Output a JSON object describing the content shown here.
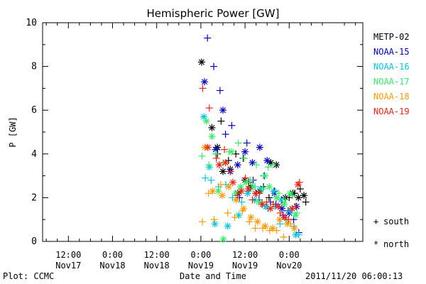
{
  "chart_data": {
    "type": "scatter",
    "title": "Hemispheric Power [GW]",
    "ylabel": "P [GW]",
    "xlabel": "Date and Time",
    "ylim": [
      0,
      10
    ],
    "yticks": [
      0,
      2,
      4,
      6,
      8,
      10
    ],
    "x_unit": "hours since 2011-11-16 12:00",
    "xlim": [
      17,
      104
    ],
    "xticks": [
      {
        "x": 24,
        "time": "12:00",
        "date": "Nov17"
      },
      {
        "x": 36,
        "time": "0:00",
        "date": "Nov18"
      },
      {
        "x": 48,
        "time": "12:00",
        "date": "Nov18"
      },
      {
        "x": 60,
        "time": "0:00",
        "date": "Nov19"
      },
      {
        "x": 72,
        "time": "12:00",
        "date": "Nov19"
      },
      {
        "x": 84,
        "time": "0:00",
        "date": "Nov20"
      }
    ],
    "series": [
      {
        "name": "METP-02",
        "color": "#000000",
        "south": [
          [
            64.5,
            4.0
          ],
          [
            65.5,
            5.5
          ],
          [
            67.5,
            3.7
          ],
          [
            69.5,
            4.0
          ],
          [
            71.5,
            3.8
          ],
          [
            73,
            2.7
          ],
          [
            75,
            2.2
          ],
          [
            77,
            2.5
          ],
          [
            78.5,
            2.0
          ],
          [
            80,
            2.3
          ],
          [
            82,
            1.9
          ],
          [
            84,
            2.0
          ],
          [
            85.5,
            2.2
          ],
          [
            87,
            2.4
          ],
          [
            88.5,
            1.8
          ]
        ],
        "north": [
          [
            60.2,
            8.2
          ],
          [
            63,
            5.2
          ],
          [
            64.5,
            4.3
          ],
          [
            66,
            3.2
          ],
          [
            68,
            3.3
          ],
          [
            70,
            2.2
          ],
          [
            72,
            2.8
          ],
          [
            73.5,
            2.5
          ],
          [
            76,
            2.3
          ],
          [
            79,
            3.6
          ],
          [
            80.5,
            3.5
          ],
          [
            83,
            2.0
          ],
          [
            85,
            2.2
          ],
          [
            86.5,
            2.0
          ],
          [
            88,
            2.1
          ]
        ]
      },
      {
        "name": "NOAA-15",
        "color": "#0000cc",
        "south": [
          [
            61.8,
            9.3
          ],
          [
            63.5,
            8.0
          ],
          [
            65.2,
            6.9
          ],
          [
            66.7,
            4.9
          ],
          [
            68.4,
            5.3
          ],
          [
            70.5,
            2.0
          ],
          [
            72.5,
            4.5
          ],
          [
            74.2,
            2.8
          ],
          [
            75.8,
            1.9
          ],
          [
            77.2,
            3.0
          ],
          [
            78.9,
            1.8
          ],
          [
            80.4,
            1.7
          ],
          [
            82.3,
            1.2
          ],
          [
            83.7,
            1.4
          ],
          [
            85.2,
            1.0
          ],
          [
            86.6,
            0.4
          ]
        ],
        "north": [
          [
            61,
            7.3
          ],
          [
            64,
            4.2
          ],
          [
            66,
            6.0
          ],
          [
            68,
            3.2
          ],
          [
            70,
            3.5
          ],
          [
            72,
            4.1
          ],
          [
            74,
            3.6
          ],
          [
            76,
            4.3
          ],
          [
            78,
            3.7
          ],
          [
            80,
            2.2
          ],
          [
            82,
            1.5
          ],
          [
            84,
            1.3
          ],
          [
            86,
            1.6
          ]
        ]
      },
      {
        "name": "NOAA-16",
        "color": "#00c8e0",
        "south": [
          [
            61.2,
            2.9
          ],
          [
            62.8,
            2.8
          ],
          [
            64.8,
            2.5
          ],
          [
            66.8,
            2.6
          ],
          [
            68.6,
            2.0
          ],
          [
            71.1,
            1.8
          ],
          [
            73,
            2.3
          ],
          [
            74.7,
            2.5
          ],
          [
            76.5,
            1.7
          ],
          [
            78.2,
            1.5
          ],
          [
            80.1,
            1.6
          ],
          [
            81.5,
            0.8
          ],
          [
            83.2,
            1.0
          ],
          [
            85.3,
            0.7
          ],
          [
            86.6,
            0.3
          ]
        ],
        "north": [
          [
            60.8,
            5.7
          ],
          [
            62.3,
            3.4
          ],
          [
            63.8,
            0.8
          ],
          [
            67.3,
            0.7
          ],
          [
            70.3,
            1.2
          ],
          [
            72.7,
            2.2
          ],
          [
            74.6,
            1.9
          ],
          [
            76.2,
            2.4
          ],
          [
            77.7,
            1.6
          ],
          [
            79.8,
            2.3
          ],
          [
            81.8,
            1.9
          ],
          [
            84.2,
            1.4
          ],
          [
            85.8,
            0.3
          ]
        ]
      },
      {
        "name": "NOAA-17",
        "color": "#33ee66",
        "south": [
          [
            60.3,
            3.9
          ],
          [
            62.2,
            3.5
          ],
          [
            64,
            4.0
          ],
          [
            66,
            3.6
          ],
          [
            67.7,
            4.1
          ],
          [
            70.2,
            4.5
          ],
          [
            71.8,
            3.8
          ],
          [
            73.4,
            2.8
          ],
          [
            75.1,
            3.5
          ],
          [
            76.9,
            2.4
          ],
          [
            78.3,
            3.4
          ],
          [
            79.5,
            3.5
          ],
          [
            81.2,
            2.2
          ],
          [
            82.9,
            1.9
          ],
          [
            84.9,
            2.1
          ],
          [
            86.1,
            1.3
          ]
        ],
        "north": [
          [
            61.5,
            5.5
          ],
          [
            63,
            4.8
          ],
          [
            64.7,
            2.3
          ],
          [
            66.1,
            0.1
          ],
          [
            68.3,
            4.1
          ],
          [
            69.5,
            2.2
          ],
          [
            70.8,
            2.5
          ],
          [
            72.3,
            2.7
          ],
          [
            74.1,
            2.5
          ],
          [
            75.7,
            1.8
          ],
          [
            77.4,
            3.0
          ],
          [
            78.6,
            2.5
          ],
          [
            80.6,
            2.0
          ],
          [
            82.7,
            1.7
          ],
          [
            84.2,
            2.2
          ],
          [
            85.7,
            1.2
          ]
        ]
      },
      {
        "name": "NOAA-18",
        "color": "#ff9900",
        "south": [
          [
            60.4,
            0.9
          ],
          [
            62.1,
            2.2
          ],
          [
            63.6,
            1.0
          ],
          [
            65.4,
            2.6
          ],
          [
            67.3,
            1.3
          ],
          [
            69.2,
            1.1
          ],
          [
            71.3,
            1.4
          ],
          [
            73.2,
            0.9
          ],
          [
            74.8,
            0.6
          ],
          [
            76.8,
            0.6
          ],
          [
            78.7,
            0.5
          ],
          [
            80.6,
            0.5
          ],
          [
            82.5,
            0.2
          ],
          [
            84.4,
            0.8
          ]
        ],
        "north": [
          [
            61.1,
            4.3
          ],
          [
            63.2,
            2.3
          ],
          [
            65.8,
            2.1
          ],
          [
            67.6,
            2.5
          ],
          [
            69.6,
            1.9
          ],
          [
            71.6,
            1.5
          ],
          [
            73.6,
            1.1
          ],
          [
            75.4,
            0.9
          ],
          [
            77.5,
            0.7
          ],
          [
            79.5,
            0.6
          ],
          [
            81.4,
            1.0
          ],
          [
            83.5,
            0.8
          ],
          [
            85.4,
            0.6
          ]
        ]
      },
      {
        "name": "NOAA-19",
        "color": "#ee2211",
        "south": [
          [
            60.5,
            7.0
          ],
          [
            62.3,
            6.1
          ],
          [
            64.2,
            3.8
          ],
          [
            66.4,
            4.2
          ],
          [
            68.1,
            3.2
          ],
          [
            70,
            2.1
          ],
          [
            72.1,
            2.9
          ],
          [
            74,
            1.9
          ],
          [
            75.9,
            2.2
          ],
          [
            77.9,
            1.8
          ],
          [
            79.7,
            1.7
          ],
          [
            81.6,
            1.3
          ],
          [
            83.8,
            1.0
          ],
          [
            85.7,
            1.6
          ],
          [
            86.8,
            2.7
          ]
        ],
        "north": [
          [
            61.9,
            4.3
          ],
          [
            65,
            3.5
          ],
          [
            66.7,
            3.6
          ],
          [
            68.7,
            2.7
          ],
          [
            71,
            2.3
          ],
          [
            72.9,
            2.4
          ],
          [
            74.9,
            2.2
          ],
          [
            76.7,
            1.7
          ],
          [
            78.9,
            1.5
          ],
          [
            81,
            1.6
          ],
          [
            82.8,
            1.1
          ],
          [
            84.8,
            1.5
          ],
          [
            86.4,
            2.6
          ]
        ]
      }
    ]
  },
  "markers": {
    "south_symbol": "+",
    "south_label": "south",
    "north_symbol": "*",
    "north_label": "north"
  },
  "footer": {
    "left": "Plot: CCMC",
    "right": "2011/11/20 06:00:13"
  }
}
